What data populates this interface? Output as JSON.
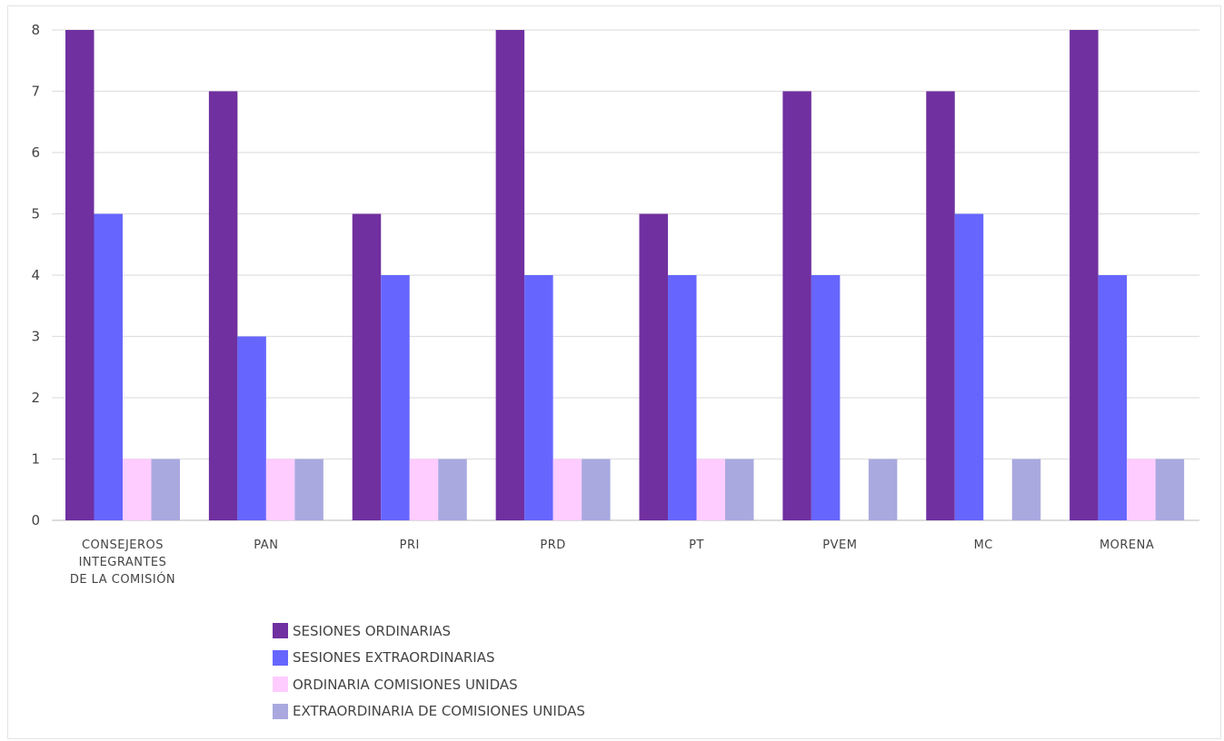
{
  "chart_data": {
    "type": "bar",
    "categories": [
      "CONSEJEROS INTEGRANTES DE LA COMISIÓN",
      "PAN",
      "PRI",
      "PRD",
      "PT",
      "PVEM",
      "MC",
      "MORENA"
    ],
    "category_lines": [
      [
        "CONSEJEROS",
        "INTEGRANTES",
        "DE LA COMISIÓN"
      ],
      [
        "PAN"
      ],
      [
        "PRI"
      ],
      [
        "PRD"
      ],
      [
        "PT"
      ],
      [
        "PVEM"
      ],
      [
        "MC"
      ],
      [
        "MORENA"
      ]
    ],
    "series": [
      {
        "name": "SESIONES ORDINARIAS",
        "color": "#7030a0",
        "values": [
          8,
          7,
          5,
          8,
          5,
          7,
          7,
          8
        ]
      },
      {
        "name": "SESIONES EXTRAORDINARIAS",
        "color": "#6666ff",
        "values": [
          5,
          3,
          4,
          4,
          4,
          4,
          5,
          4
        ]
      },
      {
        "name": "ORDINARIA COMISIONES UNIDAS",
        "color": "#ffccff",
        "values": [
          1,
          1,
          1,
          1,
          1,
          0,
          0,
          1
        ]
      },
      {
        "name": "EXTRAORDINARIA DE COMISIONES UNIDAS",
        "color": "#a9a9e0",
        "values": [
          1,
          1,
          1,
          1,
          1,
          1,
          1,
          1
        ]
      }
    ],
    "ylim": [
      0,
      8
    ],
    "yticks": [
      "0",
      "1",
      "2",
      "3",
      "4",
      "5",
      "6",
      "7",
      "8"
    ],
    "grid": true,
    "legend_position": "bottom-left",
    "title": "",
    "xlabel": "",
    "ylabel": ""
  }
}
